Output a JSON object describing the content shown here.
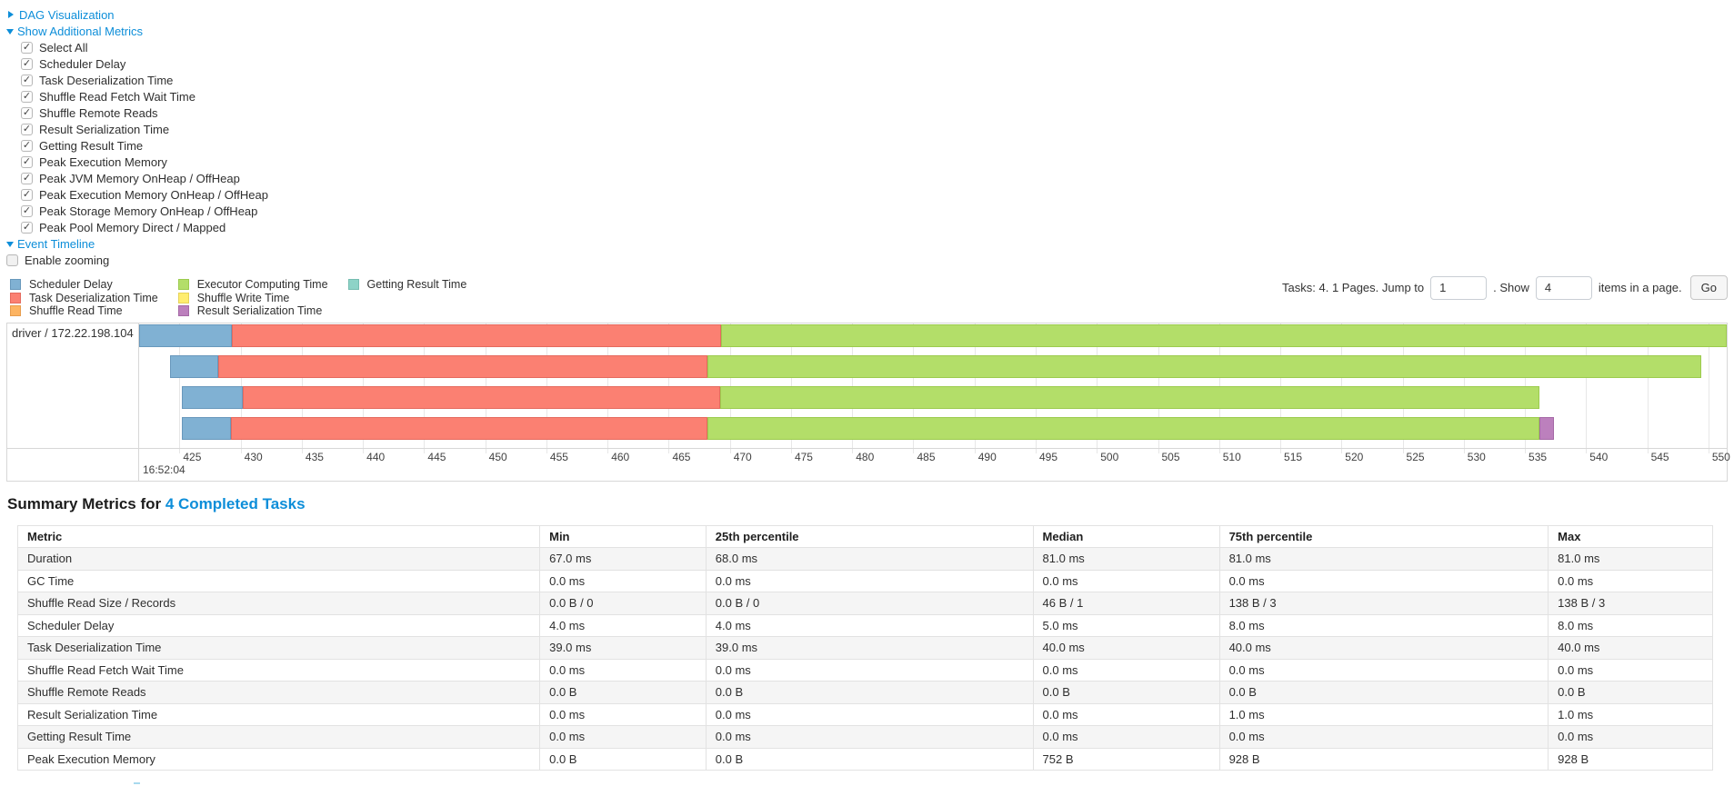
{
  "colors": {
    "link": "#0d8ed9",
    "chart_border": "#d7d7d7"
  },
  "sections": {
    "dag": {
      "label": "DAG Visualization",
      "state": "collapsed"
    },
    "additional_metrics": {
      "label": "Show Additional Metrics",
      "state": "expanded"
    },
    "event_timeline": {
      "label": "Event Timeline",
      "state": "expanded"
    }
  },
  "metric_checkboxes": [
    {
      "label": "Select All",
      "checked": true
    },
    {
      "label": "Scheduler Delay",
      "checked": true
    },
    {
      "label": "Task Deserialization Time",
      "checked": true
    },
    {
      "label": "Shuffle Read Fetch Wait Time",
      "checked": true
    },
    {
      "label": "Shuffle Remote Reads",
      "checked": true
    },
    {
      "label": "Result Serialization Time",
      "checked": true
    },
    {
      "label": "Getting Result Time",
      "checked": true
    },
    {
      "label": "Peak Execution Memory",
      "checked": true
    },
    {
      "label": "Peak JVM Memory OnHeap / OffHeap",
      "checked": true
    },
    {
      "label": "Peak Execution Memory OnHeap / OffHeap",
      "checked": true
    },
    {
      "label": "Peak Storage Memory OnHeap / OffHeap",
      "checked": true
    },
    {
      "label": "Peak Pool Memory Direct / Mapped",
      "checked": true
    }
  ],
  "enable_zooming": {
    "label": "Enable zooming",
    "checked": false
  },
  "pagination": {
    "prefix": "Tasks: 4. 1 Pages. Jump to",
    "jump_value": "1",
    "middle": ". Show",
    "show_value": "4",
    "suffix": "items in a page.",
    "go_label": "Go"
  },
  "chart_data": {
    "type": "timeline",
    "group_label": "driver / 172.22.198.104",
    "time_axis": {
      "start": 421.7,
      "end": 551.5,
      "ticks": [
        425,
        430,
        435,
        440,
        445,
        450,
        455,
        460,
        465,
        470,
        475,
        480,
        485,
        490,
        495,
        500,
        505,
        510,
        515,
        520,
        525,
        530,
        535,
        540,
        545,
        550
      ],
      "major_label": "16:52:04",
      "unit": "seconds (ms offsets within 16:52)"
    },
    "segment_colors": {
      "scheduler-delay": {
        "fill": "#80B1D3",
        "border": "#6898BC"
      },
      "task-deserialization-time": {
        "fill": "#FB8072",
        "border": "#E56A5E"
      },
      "shuffle-read-time": {
        "fill": "#FDB462",
        "border": "#E79D4D"
      },
      "executor-computing-time": {
        "fill": "#B3DE69",
        "border": "#9CCB4E"
      },
      "shuffle-write-time": {
        "fill": "#FFED6F",
        "border": "#E6D358"
      },
      "result-serialization-time": {
        "fill": "#BC80BD",
        "border": "#A569A6"
      },
      "getting-result-time": {
        "fill": "#8DD3C7",
        "border": "#76BDB1"
      }
    },
    "legend_columns": [
      [
        {
          "label": "Scheduler Delay",
          "key": "scheduler-delay"
        },
        {
          "label": "Task Deserialization Time",
          "key": "task-deserialization-time"
        },
        {
          "label": "Shuffle Read Time",
          "key": "shuffle-read-time"
        }
      ],
      [
        {
          "label": "Executor Computing Time",
          "key": "executor-computing-time"
        },
        {
          "label": "Shuffle Write Time",
          "key": "shuffle-write-time"
        },
        {
          "label": "Result Serialization Time",
          "key": "result-serialization-time"
        }
      ],
      [
        {
          "label": "Getting Result Time",
          "key": "getting-result-time"
        }
      ]
    ],
    "bars": [
      {
        "row": 0,
        "segments": [
          {
            "key": "scheduler-delay",
            "start": 421.7,
            "end": 429.3
          },
          {
            "key": "task-deserialization-time",
            "start": 429.3,
            "end": 469.3
          },
          {
            "key": "executor-computing-time",
            "start": 469.3,
            "end": 551.5
          }
        ]
      },
      {
        "row": 1,
        "segments": [
          {
            "key": "scheduler-delay",
            "start": 424.2,
            "end": 428.2
          },
          {
            "key": "task-deserialization-time",
            "start": 428.2,
            "end": 468.2
          },
          {
            "key": "executor-computing-time",
            "start": 468.2,
            "end": 549.4
          }
        ]
      },
      {
        "row": 2,
        "segments": [
          {
            "key": "scheduler-delay",
            "start": 425.2,
            "end": 430.2
          },
          {
            "key": "task-deserialization-time",
            "start": 430.2,
            "end": 469.2
          },
          {
            "key": "executor-computing-time",
            "start": 469.2,
            "end": 536.2
          }
        ]
      },
      {
        "row": 3,
        "segments": [
          {
            "key": "scheduler-delay",
            "start": 425.2,
            "end": 429.2
          },
          {
            "key": "task-deserialization-time",
            "start": 429.2,
            "end": 468.2
          },
          {
            "key": "executor-computing-time",
            "start": 468.2,
            "end": 536.2
          },
          {
            "key": "result-serialization-time",
            "start": 536.2,
            "end": 537.4
          }
        ]
      }
    ]
  },
  "summary": {
    "heading_prefix": "Summary Metrics for ",
    "heading_link": "4 Completed Tasks",
    "table": {
      "headers": [
        "Metric",
        "Min",
        "25th percentile",
        "Median",
        "75th percentile",
        "Max"
      ],
      "col_widths_pct": [
        30.8,
        9.8,
        19.3,
        11.0,
        19.4,
        9.7
      ],
      "rows": [
        [
          "Duration",
          "67.0 ms",
          "68.0 ms",
          "81.0 ms",
          "81.0 ms",
          "81.0 ms"
        ],
        [
          "GC Time",
          "0.0 ms",
          "0.0 ms",
          "0.0 ms",
          "0.0 ms",
          "0.0 ms"
        ],
        [
          "Shuffle Read Size / Records",
          "0.0 B / 0",
          "0.0 B / 0",
          "46 B / 1",
          "138 B / 3",
          "138 B / 3"
        ],
        [
          "Scheduler Delay",
          "4.0 ms",
          "4.0 ms",
          "5.0 ms",
          "8.0 ms",
          "8.0 ms"
        ],
        [
          "Task Deserialization Time",
          "39.0 ms",
          "39.0 ms",
          "40.0 ms",
          "40.0 ms",
          "40.0 ms"
        ],
        [
          "Shuffle Read Fetch Wait Time",
          "0.0 ms",
          "0.0 ms",
          "0.0 ms",
          "0.0 ms",
          "0.0 ms"
        ],
        [
          "Shuffle Remote Reads",
          "0.0 B",
          "0.0 B",
          "0.0 B",
          "0.0 B",
          "0.0 B"
        ],
        [
          "Result Serialization Time",
          "0.0 ms",
          "0.0 ms",
          "0.0 ms",
          "1.0 ms",
          "1.0 ms"
        ],
        [
          "Getting Result Time",
          "0.0 ms",
          "0.0 ms",
          "0.0 ms",
          "0.0 ms",
          "0.0 ms"
        ],
        [
          "Peak Execution Memory",
          "0.0 B",
          "0.0 B",
          "752 B",
          "928 B",
          "928 B"
        ]
      ]
    }
  }
}
